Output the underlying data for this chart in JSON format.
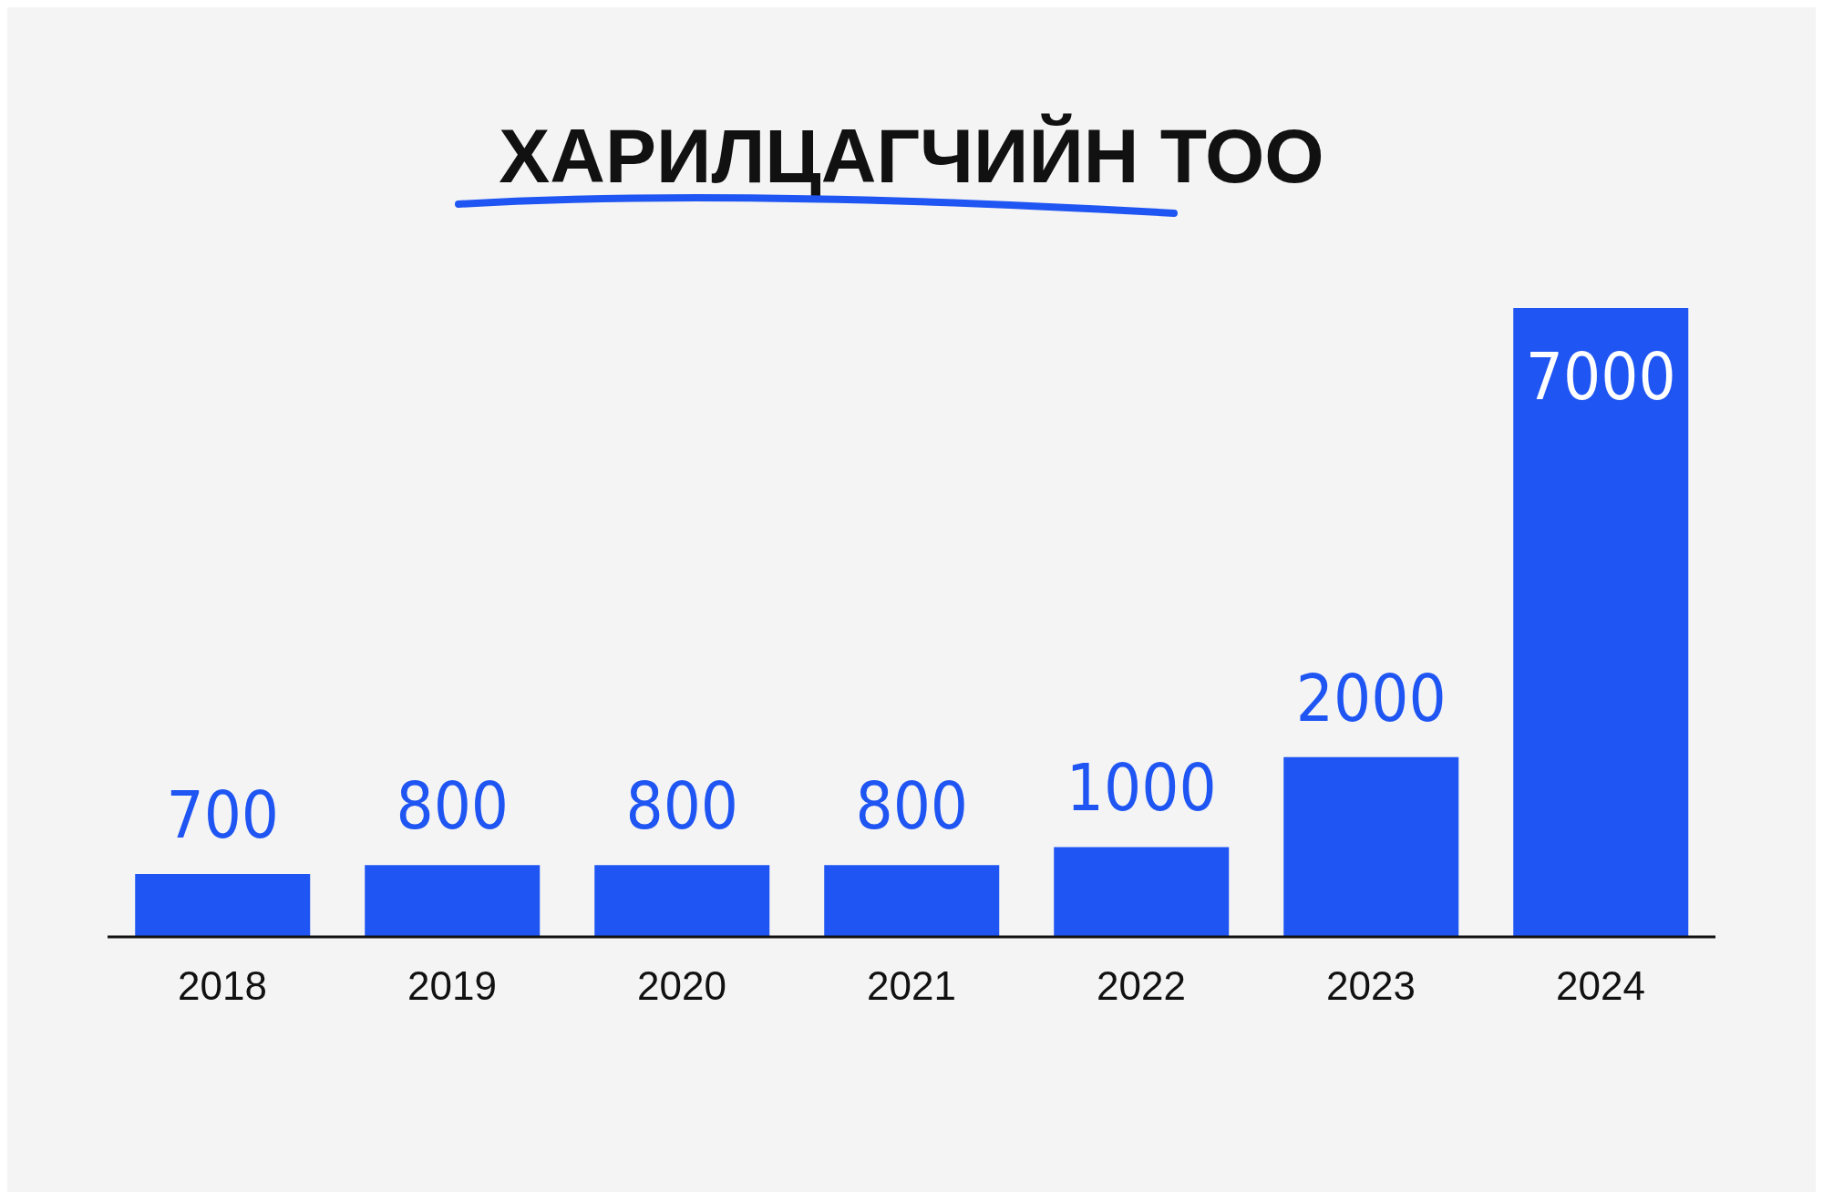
{
  "chart_data": {
    "type": "bar",
    "title": "ХАРИЛЦАГЧИЙН ТОО",
    "categories": [
      "2018",
      "2019",
      "2020",
      "2021",
      "2022",
      "2023",
      "2024"
    ],
    "values": [
      700,
      800,
      800,
      800,
      1000,
      2000,
      7000
    ],
    "color": "#1f55f2",
    "data_labels": true,
    "grid": false,
    "legend": false
  }
}
